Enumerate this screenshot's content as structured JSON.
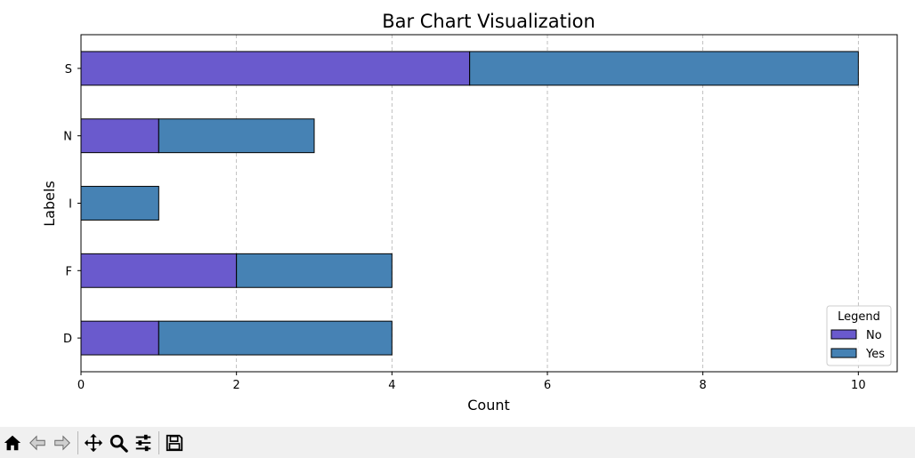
{
  "chart_data": {
    "type": "bar",
    "orientation": "horizontal",
    "stacked": true,
    "title": "Bar Chart Visualization",
    "xlabel": "Count",
    "ylabel": "Labels",
    "categories": [
      "D",
      "F",
      "I",
      "N",
      "S"
    ],
    "series": [
      {
        "name": "No",
        "values": [
          1,
          2,
          0,
          1,
          5
        ],
        "color": "#6a5acd"
      },
      {
        "name": "Yes",
        "values": [
          3,
          2,
          1,
          2,
          5
        ],
        "color": "#4682b4"
      }
    ],
    "xlim": [
      0,
      10.5
    ],
    "xticks": [
      0,
      2,
      4,
      6,
      8,
      10
    ],
    "grid": "x-dashed",
    "legend_title": "Legend",
    "legend_position": "lower-right"
  },
  "toolbar": {
    "buttons": [
      {
        "name": "home-button",
        "icon": "home-icon"
      },
      {
        "name": "back-button",
        "icon": "arrow-left-icon"
      },
      {
        "name": "forward-button",
        "icon": "arrow-right-icon"
      },
      {
        "name": "pan-button",
        "icon": "move-icon"
      },
      {
        "name": "zoom-button",
        "icon": "magnifier-icon"
      },
      {
        "name": "configure-button",
        "icon": "sliders-icon"
      },
      {
        "name": "save-button",
        "icon": "floppy-disk-icon"
      }
    ]
  }
}
